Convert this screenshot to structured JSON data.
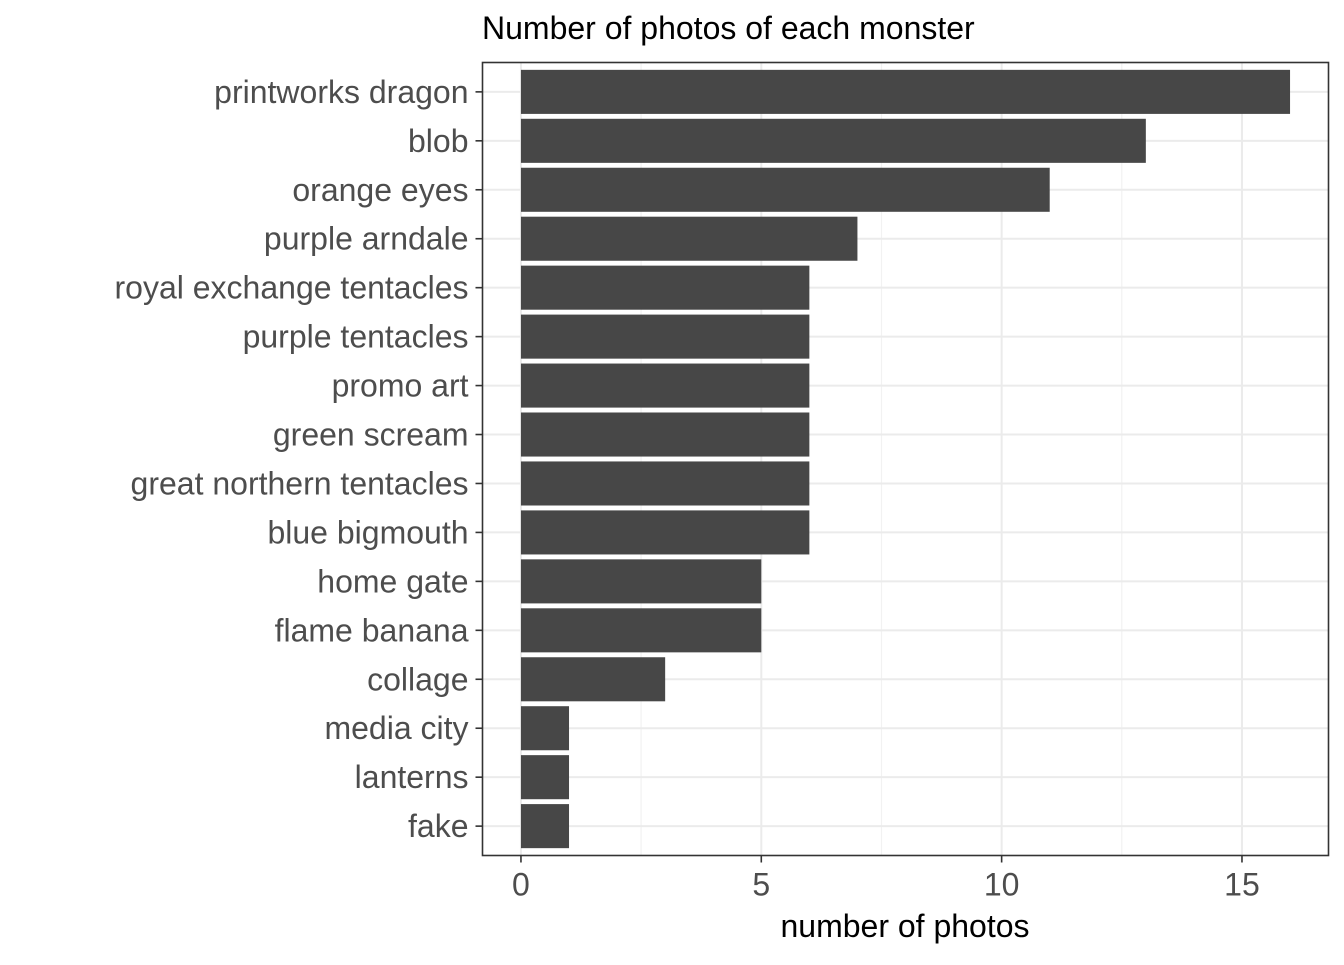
{
  "chart_data": {
    "type": "bar",
    "orientation": "horizontal",
    "title": "Number of photos of each monster",
    "xlabel": "number of photos",
    "ylabel": "",
    "categories": [
      "printworks dragon",
      "blob",
      "orange eyes",
      "purple arndale",
      "royal exchange tentacles",
      "purple tentacles",
      "promo art",
      "green scream",
      "great northern tentacles",
      "blue bigmouth",
      "home gate",
      "flame banana",
      "collage",
      "media city",
      "lanterns",
      "fake"
    ],
    "values": [
      16,
      13,
      11,
      7,
      6,
      6,
      6,
      6,
      6,
      6,
      5,
      5,
      3,
      1,
      1,
      1
    ],
    "xlim": [
      -0.8,
      16.8
    ],
    "xticks": [
      0,
      5,
      10,
      15
    ],
    "xtick_labels": [
      "0",
      "5",
      "10",
      "15"
    ],
    "grid": true,
    "legend": "none",
    "colors": {
      "bar": "#474747",
      "grid_major": "#ebebeb",
      "grid_minor": "#f2f2f2",
      "panel_border": "#333333",
      "tick_text": "#4d4d4d",
      "title_text": "#000000",
      "background": "#ffffff"
    }
  }
}
